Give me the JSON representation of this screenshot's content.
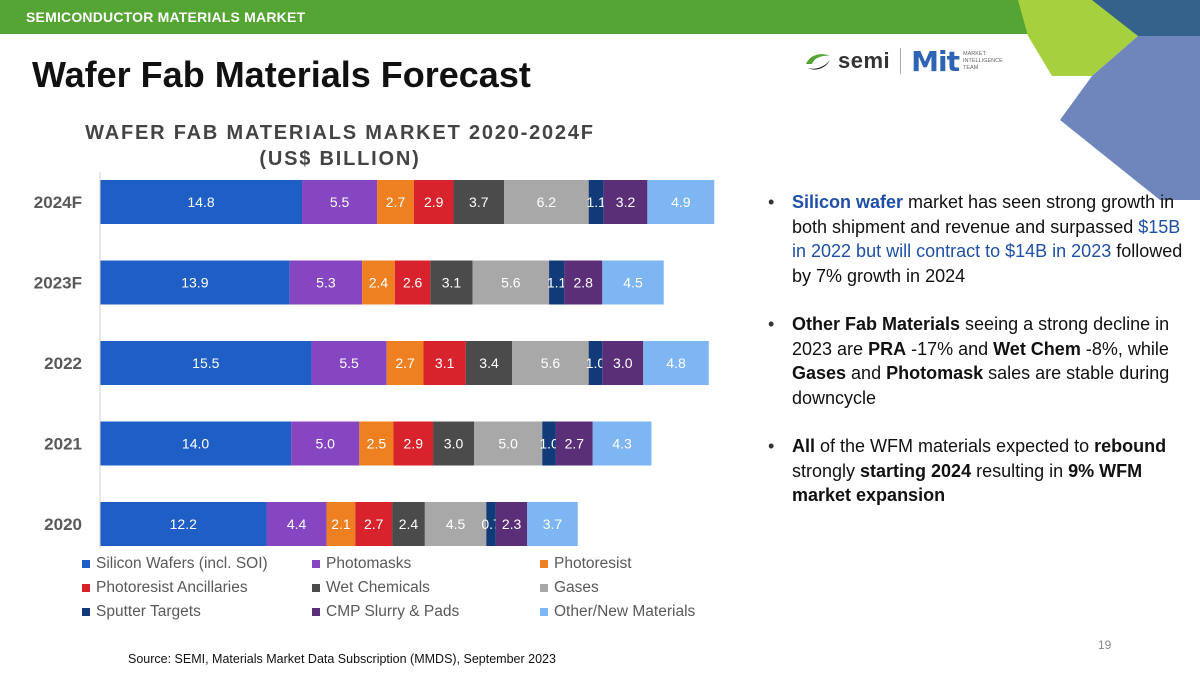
{
  "header": {
    "section_label": "SEMICONDUCTOR MATERIALS MARKET"
  },
  "slide": {
    "title": "Wafer Fab Materials Forecast",
    "page_number": "19"
  },
  "logo": {
    "semi_text": "semi",
    "mit_text": "Mit",
    "mit_subtitle": [
      "MARKET",
      "INTELLIGENCE",
      "TEAM"
    ]
  },
  "colors": {
    "header_green": "#55a535",
    "corner_green": "#a7d03f",
    "corner_blue": "#6f86bd",
    "corner_dark": "#35628a",
    "highlight_blue": "#1f4fa6"
  },
  "chart_data": {
    "type": "bar",
    "orientation": "horizontal",
    "stacked": true,
    "title_lines": [
      "WAFER FAB MATERIALS MARKET 2020-2024F",
      "(US$ BILLION)"
    ],
    "categories": [
      "2024F",
      "2023F",
      "2022",
      "2021",
      "2020"
    ],
    "series": [
      {
        "name": "Silicon Wafers (incl. SOI)",
        "color": "#1f5ec4",
        "values": [
          14.8,
          13.9,
          15.5,
          14.0,
          12.2
        ],
        "labels": [
          "14.8",
          "13.9",
          "15.5",
          "14.0",
          "12.2"
        ]
      },
      {
        "name": "Photomasks",
        "color": "#8646c2",
        "values": [
          5.5,
          5.3,
          5.5,
          5.0,
          4.4
        ],
        "labels": [
          "5.5",
          "5.3",
          "5.5",
          "5.0",
          "4.4"
        ]
      },
      {
        "name": "Photoresist",
        "color": "#ef8022",
        "values": [
          2.7,
          2.4,
          2.7,
          2.5,
          2.1
        ],
        "labels": [
          "2.7",
          "2.4",
          "2.7",
          "2.5",
          "2.1"
        ]
      },
      {
        "name": "Photoresist Ancillaries",
        "color": "#d8222c",
        "values": [
          2.9,
          2.6,
          3.1,
          2.9,
          2.7
        ],
        "labels": [
          "2.9",
          "2.6",
          "3.1",
          "2.9",
          "2.7"
        ]
      },
      {
        "name": "Wet Chemicals",
        "color": "#4b4b4b",
        "values": [
          3.7,
          3.1,
          3.4,
          3.0,
          2.4
        ],
        "labels": [
          "3.7",
          "3.1",
          "3.4",
          "3.0",
          "2.4"
        ]
      },
      {
        "name": "Gases",
        "color": "#a8a8a8",
        "values": [
          6.2,
          5.6,
          5.6,
          5.0,
          4.5
        ],
        "labels": [
          "6.2",
          "5.6",
          "5.6",
          "5.0",
          "4.5"
        ]
      },
      {
        "name": "Sputter Targets",
        "color": "#123a78",
        "values": [
          1.1,
          1.1,
          1.0,
          1.0,
          0.7
        ],
        "labels": [
          "1.1",
          "1.1",
          "1.0",
          "1.0",
          "0.7"
        ]
      },
      {
        "name": "CMP Slurry & Pads",
        "color": "#5a2f78",
        "values": [
          3.2,
          2.8,
          3.0,
          2.7,
          2.3
        ],
        "labels": [
          "3.2",
          "2.8",
          "3.0",
          "2.7",
          "2.3"
        ]
      },
      {
        "name": "Other/New Materials",
        "color": "#7db6f2",
        "values": [
          4.9,
          4.5,
          4.8,
          4.3,
          3.7
        ],
        "labels": [
          "4.9",
          "4.5",
          "4.8",
          "4.3",
          "3.7"
        ]
      }
    ],
    "legend_position": "bottom",
    "gridlines": false
  },
  "bullets": [
    {
      "segments": [
        {
          "text": "Silicon wafer",
          "style": "bold-blue"
        },
        {
          "text": " market has seen strong growth in both shipment and revenue and surpassed ",
          "style": "normal"
        },
        {
          "text": "$15B in 2022 but will contract to $14B in 2023",
          "style": "blue"
        },
        {
          "text": " followed by 7% growth in 2024",
          "style": "normal"
        }
      ]
    },
    {
      "segments": [
        {
          "text": "Other Fab Materials",
          "style": "bold"
        },
        {
          "text": " seeing a strong decline in 2023 are ",
          "style": "normal"
        },
        {
          "text": "PRA",
          "style": "bold"
        },
        {
          "text": "  -17% and ",
          "style": "normal"
        },
        {
          "text": "Wet Chem",
          "style": "bold"
        },
        {
          "text": " -8%, while ",
          "style": "normal"
        },
        {
          "text": "Gases",
          "style": "bold"
        },
        {
          "text": " and ",
          "style": "normal"
        },
        {
          "text": "Photomask",
          "style": "bold"
        },
        {
          "text": " sales are stable during downcycle",
          "style": "normal"
        }
      ]
    },
    {
      "segments": [
        {
          "text": "All",
          "style": "bold"
        },
        {
          "text": " of the WFM materials expected to ",
          "style": "normal"
        },
        {
          "text": "rebound",
          "style": "bold"
        },
        {
          "text": " strongly ",
          "style": "normal"
        },
        {
          "text": "starting 2024",
          "style": "bold"
        },
        {
          "text": " resulting in ",
          "style": "normal"
        },
        {
          "text": "9% WFM market expansion",
          "style": "bold"
        }
      ]
    }
  ],
  "source": "Source: SEMI, Materials Market Data Subscription (MMDS), September 2023"
}
